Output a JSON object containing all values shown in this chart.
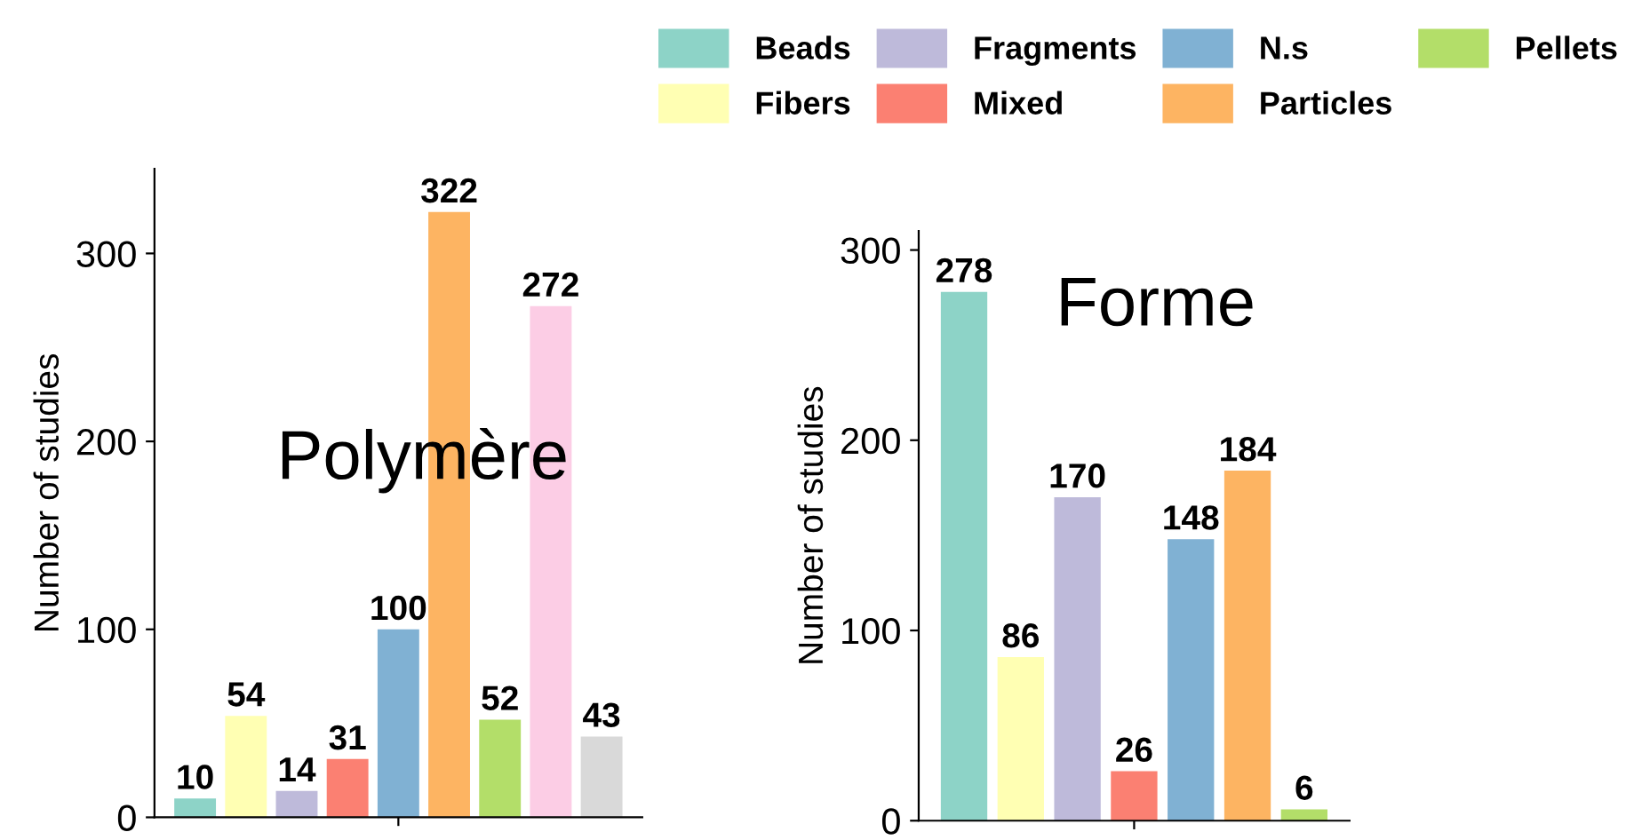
{
  "chart_data": [
    {
      "type": "bar",
      "ylabel": "Number of studies",
      "annotations": [
        "Polymère"
      ],
      "categories": [
        null,
        null,
        null,
        null,
        null,
        null,
        null,
        null,
        null
      ],
      "values": [
        10,
        54,
        14,
        31,
        100,
        322,
        52,
        272,
        43
      ],
      "colors": [
        "#8dd3c7",
        "#ffffb3",
        "#bebada",
        "#fb8072",
        "#80b1d3",
        "#fdb462",
        "#b3de69",
        "#fccde5",
        "#d9d9d9"
      ],
      "ylim": [
        0,
        345
      ],
      "yticks": [
        0,
        100,
        200,
        300
      ],
      "data_labels": true,
      "grid": false,
      "legend": false
    },
    {
      "type": "bar",
      "ylabel": "Number of studies",
      "annotations": [
        "Forme"
      ],
      "categories": [
        null,
        null,
        null,
        null,
        null,
        null,
        null
      ],
      "series": [
        {
          "name": "Beads",
          "color": "#8dd3c7",
          "values": [
            278,
            null,
            null,
            null,
            null,
            null,
            null
          ]
        },
        {
          "name": "Fragments",
          "color": "#bebada",
          "values": [
            null,
            null,
            170,
            null,
            null,
            null,
            null
          ]
        },
        {
          "name": "N.s",
          "color": "#80b1d3",
          "values": [
            null,
            null,
            null,
            null,
            148,
            null,
            null
          ]
        },
        {
          "name": "Pellets",
          "color": "#b3de69",
          "values": [
            null,
            null,
            null,
            null,
            null,
            null,
            6
          ]
        },
        {
          "name": "Fibers",
          "color": "#ffffb3",
          "values": [
            null,
            86,
            null,
            null,
            null,
            null,
            null
          ]
        },
        {
          "name": "Mixed",
          "color": "#fb8072",
          "values": [
            null,
            null,
            null,
            26,
            null,
            null,
            null
          ]
        },
        {
          "name": "Particles",
          "color": "#fdb462",
          "values": [
            null,
            null,
            null,
            null,
            null,
            184,
            null
          ]
        }
      ],
      "ylim": [
        0,
        310
      ],
      "yticks": [
        0,
        100,
        200,
        300
      ],
      "data_labels": true,
      "grid": false,
      "legend": "top"
    }
  ]
}
